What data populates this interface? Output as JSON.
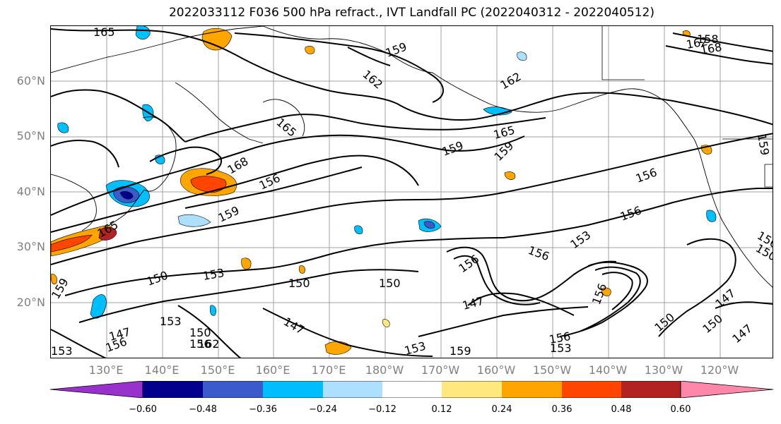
{
  "title": "2022033112 F036 500 hPa refract., IVT Landfall PC (2022040312 - 2022040512)",
  "lat_labels": [
    "60°N",
    "50°N",
    "40°N",
    "30°N",
    "20°N"
  ],
  "lon_labels": [
    "130°E",
    "140°E",
    "150°E",
    "160°E",
    "170°E",
    "180°W",
    "170°W",
    "160°W",
    "150°W",
    "140°W",
    "130°W",
    "120°W"
  ],
  "colorbar": {
    "ticks": [
      "−0.60",
      "−0.48",
      "−0.36",
      "−0.24",
      "−0.12",
      "0.12",
      "0.24",
      "0.36",
      "0.48",
      "0.60"
    ],
    "colors": [
      "#9932CC",
      "#00008B",
      "#3A5BC9",
      "#00BFFF",
      "#ADDFFF",
      "#FFFFFF",
      "#FFE97F",
      "#FFA500",
      "#FF4500",
      "#B22222",
      "#FF88AA"
    ]
  },
  "contour_labels": [
    "165",
    "159",
    "162",
    "162",
    "165",
    "159",
    "162",
    "165",
    "168",
    "165",
    "159",
    "159",
    "168",
    "156",
    "156",
    "156",
    "159",
    "156",
    "153",
    "156",
    "150",
    "156",
    "159",
    "150",
    "153",
    "150",
    "150",
    "147",
    "147",
    "156",
    "150",
    "153",
    "147",
    "153",
    "156",
    "159",
    "153",
    "156",
    "153",
    "147",
    "150",
    "147",
    "150",
    "156",
    "162",
    "158"
  ]
}
